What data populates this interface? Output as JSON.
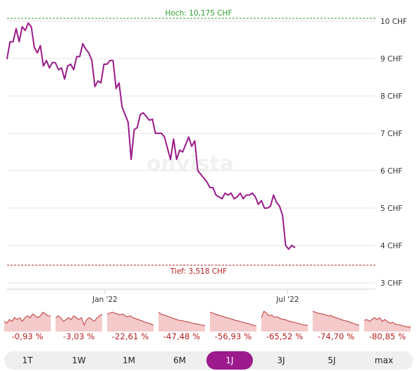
{
  "chart_data": {
    "type": "line",
    "y_unit": "CHF",
    "ylim": [
      2.8,
      10.5
    ],
    "yticks": [
      3,
      4,
      5,
      6,
      7,
      8,
      9,
      10
    ],
    "ytick_labels": [
      "3 CHF",
      "4 CHF",
      "5 CHF",
      "6 CHF",
      "7 CHF",
      "8 CHF",
      "9 CHF",
      "10 CHF"
    ],
    "x_tick_labels": [
      "Jan '22",
      "Jul '22"
    ],
    "x_tick_dates": [
      "2022-01-01",
      "2022-07-01"
    ],
    "xlim": [
      "2021-09-26",
      "2022-09-26"
    ],
    "grid": true,
    "series_color": "#9c1a8c",
    "high": {
      "label": "Hoch: 10,175 CHF",
      "value": 10.175,
      "color": "#2e9c2e"
    },
    "low": {
      "label": "Tief: 3,518 CHF",
      "value": 3.518,
      "color": "#b71c1c"
    },
    "watermark": "onvista",
    "points": [
      [
        "2021-09-26",
        9.0
      ],
      [
        "2021-09-29",
        9.45
      ],
      [
        "2021-10-02",
        9.45
      ],
      [
        "2021-10-05",
        9.8
      ],
      [
        "2021-10-08",
        9.45
      ],
      [
        "2021-10-11",
        9.85
      ],
      [
        "2021-10-14",
        9.75
      ],
      [
        "2021-10-17",
        9.95
      ],
      [
        "2021-10-20",
        9.85
      ],
      [
        "2021-10-23",
        9.3
      ],
      [
        "2021-10-26",
        9.15
      ],
      [
        "2021-10-29",
        9.35
      ],
      [
        "2021-11-01",
        8.8
      ],
      [
        "2021-11-04",
        8.95
      ],
      [
        "2021-11-07",
        8.75
      ],
      [
        "2021-11-10",
        8.9
      ],
      [
        "2021-11-13",
        8.88
      ],
      [
        "2021-11-16",
        8.7
      ],
      [
        "2021-11-19",
        8.75
      ],
      [
        "2021-11-22",
        8.45
      ],
      [
        "2021-11-25",
        8.8
      ],
      [
        "2021-11-28",
        8.85
      ],
      [
        "2021-12-01",
        8.7
      ],
      [
        "2021-12-04",
        9.05
      ],
      [
        "2021-12-07",
        9.05
      ],
      [
        "2021-12-10",
        9.4
      ],
      [
        "2021-12-13",
        9.25
      ],
      [
        "2021-12-16",
        9.15
      ],
      [
        "2021-12-19",
        8.95
      ],
      [
        "2021-12-22",
        8.25
      ],
      [
        "2021-12-25",
        8.4
      ],
      [
        "2021-12-28",
        8.35
      ],
      [
        "2021-12-31",
        8.85
      ],
      [
        "2022-01-03",
        8.85
      ],
      [
        "2022-01-06",
        8.95
      ],
      [
        "2022-01-09",
        8.95
      ],
      [
        "2022-01-12",
        8.2
      ],
      [
        "2022-01-15",
        8.35
      ],
      [
        "2022-01-18",
        7.7
      ],
      [
        "2022-01-21",
        7.5
      ],
      [
        "2022-01-24",
        7.3
      ],
      [
        "2022-01-27",
        6.3
      ],
      [
        "2022-01-30",
        7.1
      ],
      [
        "2022-02-02",
        7.15
      ],
      [
        "2022-02-05",
        7.5
      ],
      [
        "2022-02-08",
        7.55
      ],
      [
        "2022-02-11",
        7.45
      ],
      [
        "2022-02-14",
        7.35
      ],
      [
        "2022-02-17",
        7.38
      ],
      [
        "2022-02-20",
        7.0
      ],
      [
        "2022-02-23",
        7.0
      ],
      [
        "2022-02-26",
        7.0
      ],
      [
        "2022-03-01",
        6.9
      ],
      [
        "2022-03-04",
        6.6
      ],
      [
        "2022-03-07",
        6.3
      ],
      [
        "2022-03-10",
        6.85
      ],
      [
        "2022-03-13",
        6.3
      ],
      [
        "2022-03-16",
        6.55
      ],
      [
        "2022-03-19",
        6.5
      ],
      [
        "2022-03-22",
        6.7
      ],
      [
        "2022-03-25",
        6.9
      ],
      [
        "2022-03-28",
        6.65
      ],
      [
        "2022-03-31",
        6.8
      ],
      [
        "2022-04-03",
        6.0
      ],
      [
        "2022-04-06",
        5.9
      ],
      [
        "2022-04-09",
        5.8
      ],
      [
        "2022-04-12",
        5.7
      ],
      [
        "2022-04-15",
        5.55
      ],
      [
        "2022-04-18",
        5.55
      ],
      [
        "2022-04-21",
        5.35
      ],
      [
        "2022-04-24",
        5.3
      ],
      [
        "2022-04-27",
        5.25
      ],
      [
        "2022-04-30",
        5.4
      ],
      [
        "2022-05-03",
        5.35
      ],
      [
        "2022-05-06",
        5.4
      ],
      [
        "2022-05-09",
        5.25
      ],
      [
        "2022-05-12",
        5.3
      ],
      [
        "2022-05-15",
        5.4
      ],
      [
        "2022-05-18",
        5.25
      ],
      [
        "2022-05-21",
        5.35
      ],
      [
        "2022-05-24",
        5.35
      ],
      [
        "2022-05-27",
        5.4
      ],
      [
        "2022-05-30",
        5.3
      ],
      [
        "2022-06-02",
        5.1
      ],
      [
        "2022-06-05",
        5.2
      ],
      [
        "2022-06-08",
        5.0
      ],
      [
        "2022-06-11",
        5.0
      ],
      [
        "2022-06-14",
        5.05
      ],
      [
        "2022-06-17",
        5.35
      ],
      [
        "2022-06-20",
        5.15
      ],
      [
        "2022-06-23",
        5.05
      ],
      [
        "2022-06-26",
        4.8
      ],
      [
        "2022-06-29",
        4.0
      ],
      [
        "2022-07-02",
        3.9
      ],
      [
        "2022-07-05",
        4.0
      ],
      [
        "2022-07-08",
        3.95
      ]
    ],
    "mini_charts": [
      {
        "label": "-0,93 %",
        "values": [
          0.4,
          0.3,
          0.5,
          0.4,
          0.6,
          0.5,
          0.6,
          0.4,
          0.6,
          0.7,
          0.6,
          0.8,
          0.7,
          0.6,
          0.7,
          0.9,
          0.8,
          0.7,
          0.7
        ]
      },
      {
        "label": "-3,03 %",
        "values": [
          0.6,
          0.7,
          0.6,
          0.4,
          0.5,
          0.6,
          0.5,
          0.7,
          0.6,
          0.5,
          0.6,
          0.2,
          0.5,
          0.6,
          0.5,
          0.4,
          0.6,
          0.7,
          0.8
        ]
      },
      {
        "label": "-22,61 %",
        "values": [
          0.8,
          0.85,
          0.9,
          0.85,
          0.8,
          0.75,
          0.8,
          0.7,
          0.65,
          0.7,
          0.6,
          0.55,
          0.5,
          0.45,
          0.4,
          0.35,
          0.3,
          0.25,
          0.2
        ]
      },
      {
        "label": "-47,48 %",
        "values": [
          0.9,
          0.8,
          0.75,
          0.7,
          0.65,
          0.6,
          0.55,
          0.5,
          0.45,
          0.45,
          0.4,
          0.38,
          0.35,
          0.3,
          0.28,
          0.25,
          0.22,
          0.2,
          0.15
        ]
      },
      {
        "label": "-56,93 %",
        "values": [
          0.9,
          0.85,
          0.8,
          0.75,
          0.7,
          0.68,
          0.62,
          0.58,
          0.55,
          0.5,
          0.45,
          0.42,
          0.38,
          0.35,
          0.3,
          0.28,
          0.22,
          0.18,
          0.15
        ]
      },
      {
        "label": "-65,52 %",
        "values": [
          0.6,
          0.95,
          0.85,
          0.7,
          0.75,
          0.62,
          0.65,
          0.58,
          0.52,
          0.5,
          0.45,
          0.4,
          0.36,
          0.34,
          0.3,
          0.26,
          0.22,
          0.2,
          0.18
        ]
      },
      {
        "label": "-74,70 %",
        "values": [
          0.95,
          0.9,
          0.85,
          0.82,
          0.8,
          0.75,
          0.7,
          0.72,
          0.65,
          0.6,
          0.55,
          0.5,
          0.45,
          0.42,
          0.38,
          0.32,
          0.28,
          0.22,
          0.2
        ]
      },
      {
        "label": "-80,85 %",
        "values": [
          0.45,
          0.5,
          0.4,
          0.5,
          0.6,
          0.5,
          0.6,
          0.4,
          0.5,
          0.4,
          0.3,
          0.35,
          0.25,
          0.22,
          0.2,
          0.15,
          0.12,
          0.1,
          0.08
        ]
      }
    ]
  },
  "range_buttons": [
    "1T",
    "1W",
    "1M",
    "6M",
    "1J",
    "3J",
    "5J",
    "max"
  ],
  "active_range": "1J",
  "colors": {
    "mini_line": "#c4504f",
    "mini_fill": "#f4caca",
    "grid": "#e6e6e6",
    "axis_text": "#333333"
  }
}
